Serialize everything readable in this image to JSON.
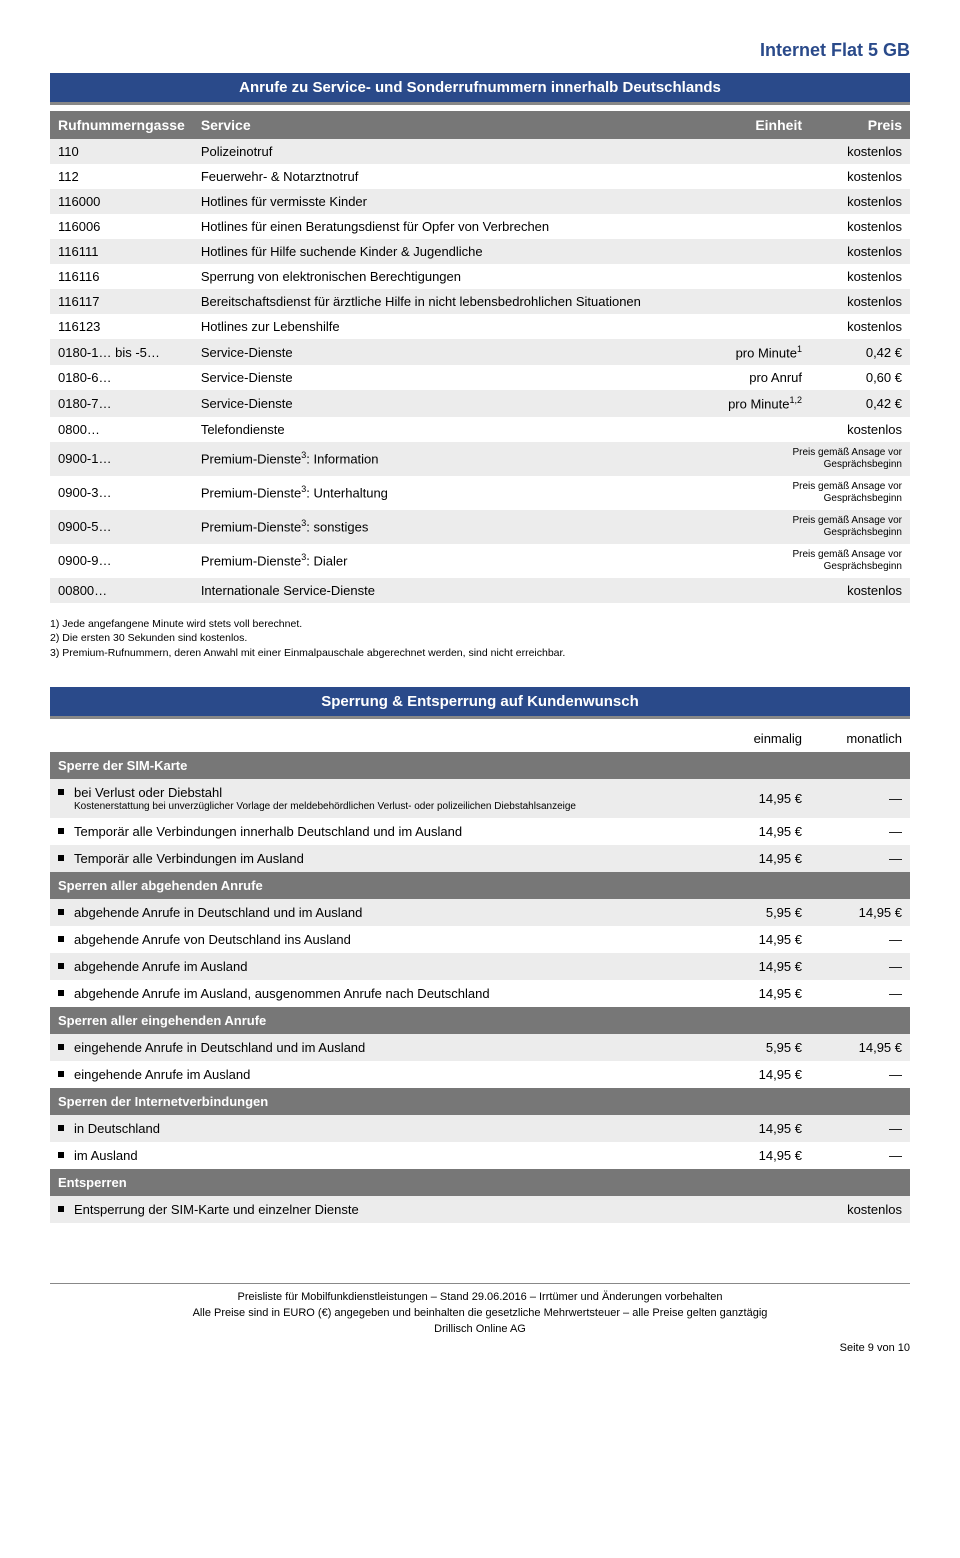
{
  "brand": "Internet Flat 5 GB",
  "section1": {
    "title": "Anrufe zu Service- und Sonderrufnummern innerhalb Deutschlands",
    "columns": [
      "Rufnummerngasse",
      "Service",
      "Einheit",
      "Preis"
    ],
    "rows": [
      {
        "num": "110",
        "svc": "Polizeinotruf",
        "merged": "kostenlos"
      },
      {
        "num": "112",
        "svc": "Feuerwehr- & Notarztnotruf",
        "merged": "kostenlos"
      },
      {
        "num": "116000",
        "svc": "Hotlines für vermisste Kinder",
        "merged": "kostenlos"
      },
      {
        "num": "116006",
        "svc": "Hotlines für einen Beratungsdienst für Opfer von Verbrechen",
        "merged": "kostenlos"
      },
      {
        "num": "116111",
        "svc": "Hotlines für Hilfe suchende Kinder & Jugendliche",
        "merged": "kostenlos"
      },
      {
        "num": "116116",
        "svc": "Sperrung von elektronischen Berechtigungen",
        "merged": "kostenlos"
      },
      {
        "num": "116117",
        "svc": "Bereitschaftsdienst für ärztliche Hilfe in nicht lebensbedrohlichen Situationen",
        "merged": "kostenlos"
      },
      {
        "num": "116123",
        "svc": "Hotlines zur Lebenshilfe",
        "merged": "kostenlos"
      },
      {
        "num": "0180-1… bis -5…",
        "svc": "Service-Dienste",
        "unit_html": "pro Minute<sup>1</sup>",
        "price": "0,42 €"
      },
      {
        "num": "0180-6…",
        "svc": "Service-Dienste",
        "unit": "pro Anruf",
        "price": "0,60 €"
      },
      {
        "num": "0180-7…",
        "svc": "Service-Dienste",
        "unit_html": "pro Minute<sup>1,2</sup>",
        "price": "0,42 €"
      },
      {
        "num": "0800…",
        "svc": "Telefondienste",
        "merged": "kostenlos"
      },
      {
        "num": "0900-1…",
        "svc_html": "Premium-Dienste<sup>3</sup>: Information",
        "merged_small": "Preis gemäß Ansage vor Gesprächsbeginn"
      },
      {
        "num": "0900-3…",
        "svc_html": "Premium-Dienste<sup>3</sup>: Unterhaltung",
        "merged_small": "Preis gemäß Ansage vor Gesprächsbeginn"
      },
      {
        "num": "0900-5…",
        "svc_html": "Premium-Dienste<sup>3</sup>: sonstiges",
        "merged_small": "Preis gemäß Ansage vor Gesprächsbeginn"
      },
      {
        "num": "0900-9…",
        "svc_html": "Premium-Dienste<sup>3</sup>: Dialer",
        "merged_small": "Preis gemäß Ansage vor Gesprächsbeginn"
      },
      {
        "num": "00800…",
        "svc": "Internationale Service-Dienste",
        "merged": "kostenlos"
      }
    ]
  },
  "footnotes": [
    "1)   Jede angefangene Minute wird stets voll berechnet.",
    "2)   Die ersten 30 Sekunden sind kostenlos.",
    "3)   Premium-Rufnummern, deren Anwahl mit einer Einmalpauschale abgerechnet werden, sind nicht erreichbar."
  ],
  "section2": {
    "title": "Sperrung & Entsperrung auf Kundenwunsch",
    "col_einmalig": "einmalig",
    "col_monatlich": "monatlich",
    "groups": [
      {
        "head": "Sperre der SIM-Karte",
        "rows": [
          {
            "label": "bei Verlust oder Diebstahl",
            "sub": "Kostenerstattung bei unverzüglicher Vorlage der meldebehördlichen Verlust- oder polizeilichen Diebstahlsanzeige",
            "e": "14,95 €",
            "m": "—"
          },
          {
            "label": "Temporär alle Verbindungen innerhalb Deutschland und im Ausland",
            "e": "14,95 €",
            "m": "—"
          },
          {
            "label": "Temporär alle Verbindungen im Ausland",
            "e": "14,95 €",
            "m": "—"
          }
        ]
      },
      {
        "head": "Sperren aller abgehenden Anrufe",
        "rows": [
          {
            "label": "abgehende Anrufe in Deutschland und im Ausland",
            "e": "5,95 €",
            "m": "14,95 €"
          },
          {
            "label": "abgehende Anrufe von Deutschland ins Ausland",
            "e": "14,95 €",
            "m": "—"
          },
          {
            "label": "abgehende Anrufe im Ausland",
            "e": "14,95 €",
            "m": "—"
          },
          {
            "label": "abgehende Anrufe im Ausland, ausgenommen Anrufe nach Deutschland",
            "e": "14,95 €",
            "m": "—"
          }
        ]
      },
      {
        "head": "Sperren aller eingehenden Anrufe",
        "rows": [
          {
            "label": "eingehende Anrufe in Deutschland und im Ausland",
            "e": "5,95 €",
            "m": "14,95 €"
          },
          {
            "label": "eingehende Anrufe im Ausland",
            "e": "14,95 €",
            "m": "—"
          }
        ]
      },
      {
        "head": "Sperren der Internetverbindungen",
        "rows": [
          {
            "label": "in Deutschland",
            "e": "14,95 €",
            "m": "—"
          },
          {
            "label": "im Ausland",
            "e": "14,95 €",
            "m": "—"
          }
        ]
      },
      {
        "head": "Entsperren",
        "rows": [
          {
            "label": "Entsperrung der SIM-Karte und einzelner Dienste",
            "merged": "kostenlos"
          }
        ]
      }
    ]
  },
  "footer": {
    "line1": "Preisliste für Mobilfunkdienstleistungen – Stand 29.06.2016 – Irrtümer und Änderungen vorbehalten",
    "line2": "Alle Preise sind in EURO (€) angegeben und beinhalten die gesetzliche Mehrwertsteuer – alle Preise gelten ganztägig",
    "line3": "Drillisch Online AG",
    "page": "Seite 9 von 10"
  }
}
